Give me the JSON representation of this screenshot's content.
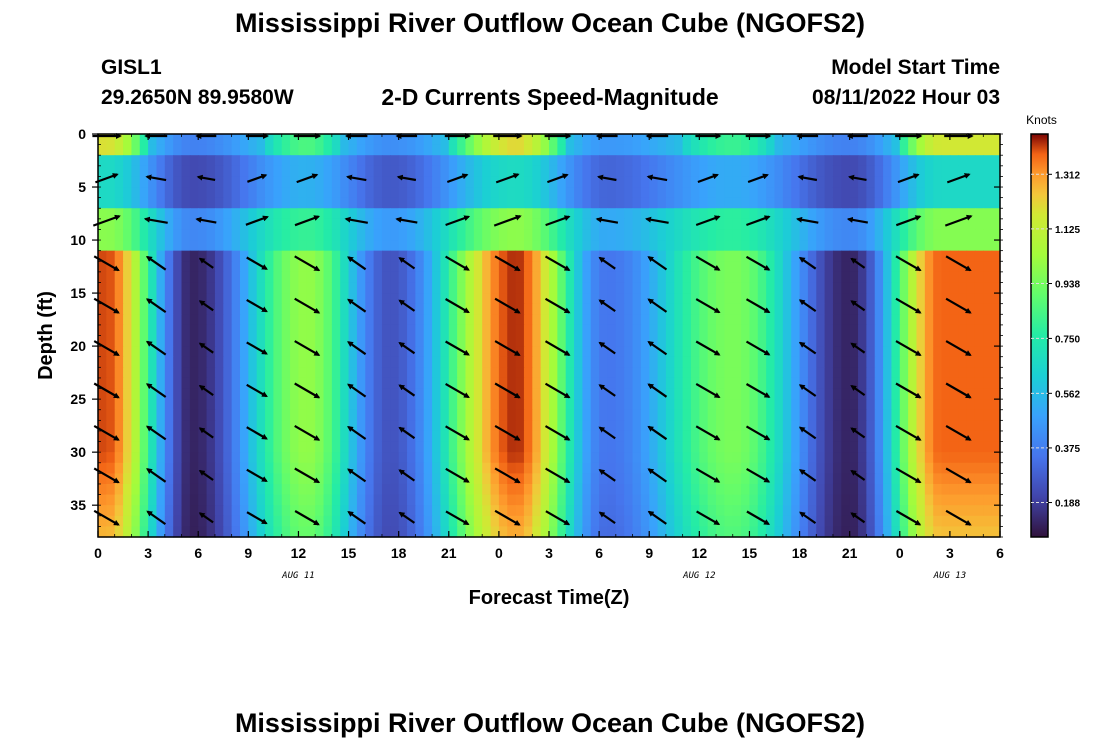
{
  "header": {
    "title": "Mississippi River Outflow Ocean Cube (NGOFS2)",
    "station_id": "GISL1",
    "station_coords": "29.2650N  89.9580W",
    "subtitle": "2-D Currents Speed-Magnitude",
    "model_start_label": "Model Start Time",
    "model_start_time": "08/11/2022 Hour 03"
  },
  "footer": {
    "title": "Mississippi River Outflow Ocean Cube (NGOFS2)"
  },
  "chart_data": {
    "type": "heatmap",
    "title": "2-D Currents Speed-Magnitude",
    "xlabel": "Forecast Time(Z)",
    "ylabel": "Depth (ft)",
    "xlim": [
      0,
      54
    ],
    "ylim": [
      0,
      38
    ],
    "y_inverted": true,
    "x_ticks": [
      0,
      3,
      6,
      9,
      12,
      15,
      18,
      21,
      24,
      27,
      30,
      33,
      36,
      39,
      42,
      45,
      48,
      51,
      54
    ],
    "x_tick_labels": [
      "0",
      "3",
      "6",
      "9",
      "12",
      "15",
      "18",
      "21",
      "0",
      "3",
      "6",
      "9",
      "12",
      "15",
      "18",
      "21",
      "0",
      "3",
      "6"
    ],
    "y_ticks": [
      0,
      5,
      10,
      15,
      20,
      25,
      30,
      35
    ],
    "y_tick_labels": [
      "0",
      "5",
      "10",
      "15",
      "20",
      "25",
      "30",
      "35"
    ],
    "date_labels": [
      {
        "x": 12,
        "text": "AUG 11"
      },
      {
        "x": 36,
        "text": "AUG 12"
      },
      {
        "x": 51,
        "text": "AUG 13"
      }
    ],
    "colorbar": {
      "unit": "Knots",
      "range": [
        0.07,
        1.45
      ],
      "ticks": [
        0.188,
        0.375,
        0.562,
        0.75,
        0.938,
        1.125,
        1.312
      ],
      "tick_labels": [
        "0.188",
        "0.375",
        "0.562",
        "0.750",
        "0.938",
        "1.125",
        "1.312"
      ],
      "colormap": "turbo"
    },
    "speed_peaks_knots": [
      {
        "x": 0.5,
        "speed": 1.4
      },
      {
        "x": 5.7,
        "speed": 0.12
      },
      {
        "x": 12.5,
        "speed": 1.0
      },
      {
        "x": 17.5,
        "speed": 0.25
      },
      {
        "x": 25,
        "speed": 1.42
      },
      {
        "x": 30.5,
        "speed": 0.35
      },
      {
        "x": 38,
        "speed": 0.95
      },
      {
        "x": 45,
        "speed": 0.12
      },
      {
        "x": 50.5,
        "speed": 1.38
      }
    ],
    "layer_depths_ft": [
      0,
      4,
      8,
      12,
      16,
      20,
      24,
      28,
      32,
      36
    ],
    "vector_times": [
      0.5,
      3.5,
      6.5,
      9.5,
      12.5,
      15.5,
      18.5,
      21.5,
      24.5,
      27.5,
      30.5,
      33.5,
      36.5,
      39.5,
      42.5,
      45.5,
      48.5,
      51.5
    ],
    "near_surface_direction": "eastward (flood) / westward (ebb)",
    "subsurface_direction": "southeastward (ebb) / northwestward (flood)"
  }
}
